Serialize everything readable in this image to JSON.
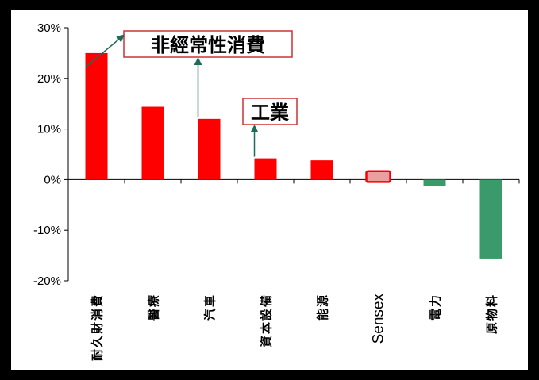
{
  "chart_data": {
    "type": "bar",
    "categories": [
      "耐久財消費",
      "醫療",
      "汽車",
      "資本設備",
      "能源",
      "Sensex",
      "電力",
      "原物料"
    ],
    "values": [
      25,
      14.4,
      12,
      4.2,
      3.8,
      1.2,
      -1.3,
      -15.6
    ],
    "ylim": [
      -20,
      30
    ],
    "yticks": [
      -20,
      -10,
      0,
      10,
      20,
      30
    ],
    "ytick_labels": [
      "-20%",
      "-10%",
      "0%",
      "10%",
      "20%",
      "30%"
    ],
    "grid": false,
    "colors": {
      "positive": "#FF0000",
      "negative": "#3A9A6A",
      "highlight_fill": "#E8A0A0",
      "highlight_border": "#FF0000",
      "annotation_box": "#CC3333",
      "arrow": "#1F6B5A"
    },
    "highlight_category": "Sensex",
    "annotations": [
      {
        "text": "非經常性消費",
        "categories": [
          "耐久財消費",
          "汽車"
        ]
      },
      {
        "text": "工業",
        "categories": [
          "資本設備"
        ]
      }
    ]
  }
}
